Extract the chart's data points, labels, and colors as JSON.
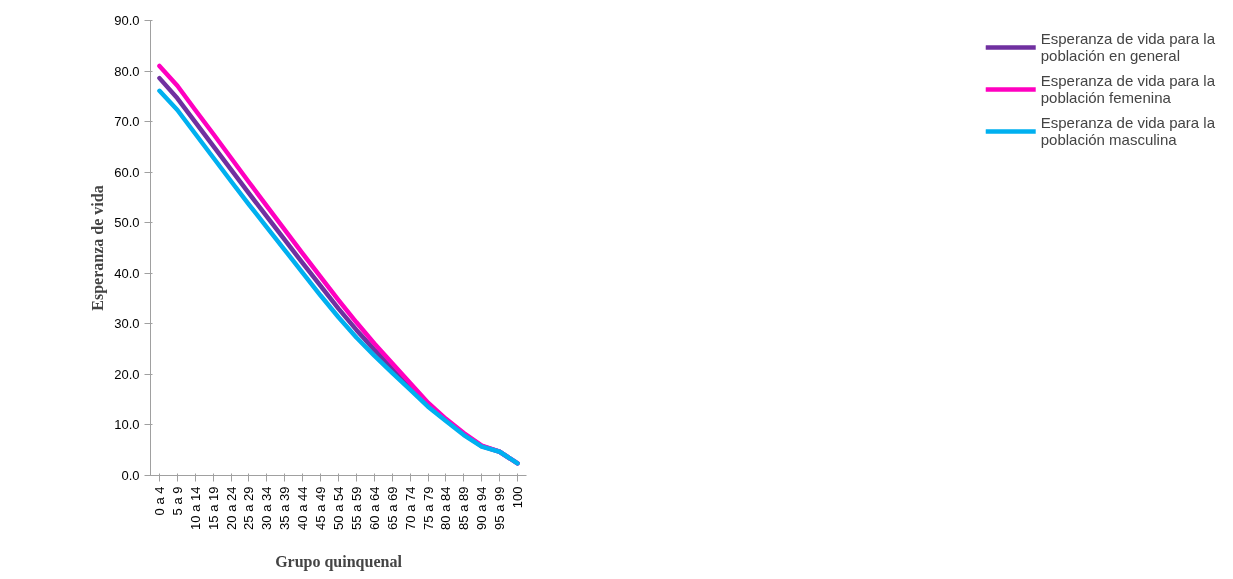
{
  "chart_data": {
    "type": "line",
    "xlabel": "Grupo quinquenal",
    "ylabel": "Esperanza de vida",
    "categories": [
      "0 a 4",
      "5 a 9",
      "10 a 14",
      "15 a 19",
      "20 a 24",
      "25 a 29",
      "30 a 34",
      "35 a 39",
      "40 a 44",
      "45 a 49",
      "50 a 54",
      "55 a 59",
      "60 a 64",
      "65 a 69",
      "70 a 74",
      "75 a 79",
      "80 a 84",
      "85 a 89",
      "90 a 94",
      "95 a 99",
      "100"
    ],
    "series": [
      {
        "name": "Esperanza de vida para la población en general",
        "color": "#7030a0",
        "values": [
          78.6,
          74.6,
          69.9,
          65.2,
          60.5,
          55.8,
          51.2,
          46.6,
          42.0,
          37.5,
          33.0,
          28.8,
          24.9,
          21.3,
          17.7,
          14.0,
          11.0,
          8.2,
          5.8,
          4.7,
          2.4
        ]
      },
      {
        "name": "Esperanza de vida para la población femenina",
        "color": "#ff00c0",
        "values": [
          81.0,
          77.1,
          72.3,
          67.6,
          62.8,
          58.0,
          53.3,
          48.6,
          43.9,
          39.3,
          34.7,
          30.3,
          26.1,
          22.2,
          18.3,
          14.4,
          11.2,
          8.4,
          5.9,
          4.7,
          2.4
        ]
      },
      {
        "name": "Esperanza de vida para la población masculina",
        "color": "#00b0f0",
        "values": [
          76.1,
          72.3,
          67.6,
          62.9,
          58.2,
          53.6,
          49.1,
          44.6,
          40.1,
          35.6,
          31.3,
          27.3,
          23.7,
          20.3,
          17.0,
          13.6,
          10.8,
          8.0,
          5.7,
          4.7,
          2.4
        ]
      }
    ],
    "ylim": [
      0,
      90
    ],
    "yticks": [
      {
        "value": 0,
        "label": "0.0"
      },
      {
        "value": 10,
        "label": "10.0"
      },
      {
        "value": 20,
        "label": "20.0"
      },
      {
        "value": 30,
        "label": "30.0"
      },
      {
        "value": 40,
        "label": "40.0"
      },
      {
        "value": 50,
        "label": "50.0"
      },
      {
        "value": 60,
        "label": "60.0"
      },
      {
        "value": 70,
        "label": "70.0"
      },
      {
        "value": 80,
        "label": "80.0"
      },
      {
        "value": 90,
        "label": "90.0"
      }
    ],
    "grid": false,
    "legend": "right",
    "marker": "none",
    "line_style": "solid"
  }
}
